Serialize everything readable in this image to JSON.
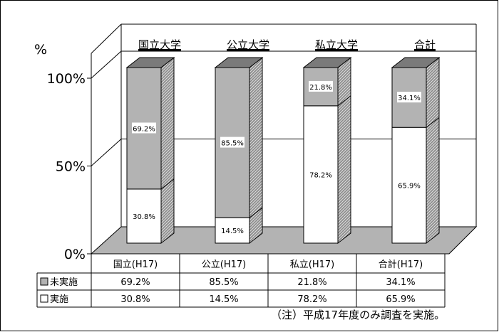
{
  "chart_data": {
    "type": "bar",
    "stacked": true,
    "three_d": true,
    "y_unit": "%",
    "ylim": [
      0,
      100
    ],
    "y_ticks": [
      "0%",
      "50%",
      "100%"
    ],
    "category_headers": [
      "国立大学",
      "公立大学",
      "私立大学",
      "合計"
    ],
    "categories": [
      "国立(H17)",
      "公立(H17)",
      "私立(H17)",
      "合計(H17)"
    ],
    "series": [
      {
        "name": "実施",
        "values": [
          30.8,
          14.5,
          78.2,
          65.9
        ],
        "labels": [
          "30.8%",
          "14.5%",
          "78.2%",
          "65.9%"
        ],
        "color": "#ffffff",
        "legend_icon": "white-square"
      },
      {
        "name": "未実施",
        "values": [
          69.2,
          85.5,
          21.8,
          34.1
        ],
        "labels": [
          "69.2%",
          "85.5%",
          "21.8%",
          "34.1%"
        ],
        "color": "#b3b3b3",
        "legend_icon": "gray-square"
      }
    ],
    "grid": true,
    "legend": "data-table-below",
    "note": "（注）平成17年度のみ調査を実施。"
  }
}
